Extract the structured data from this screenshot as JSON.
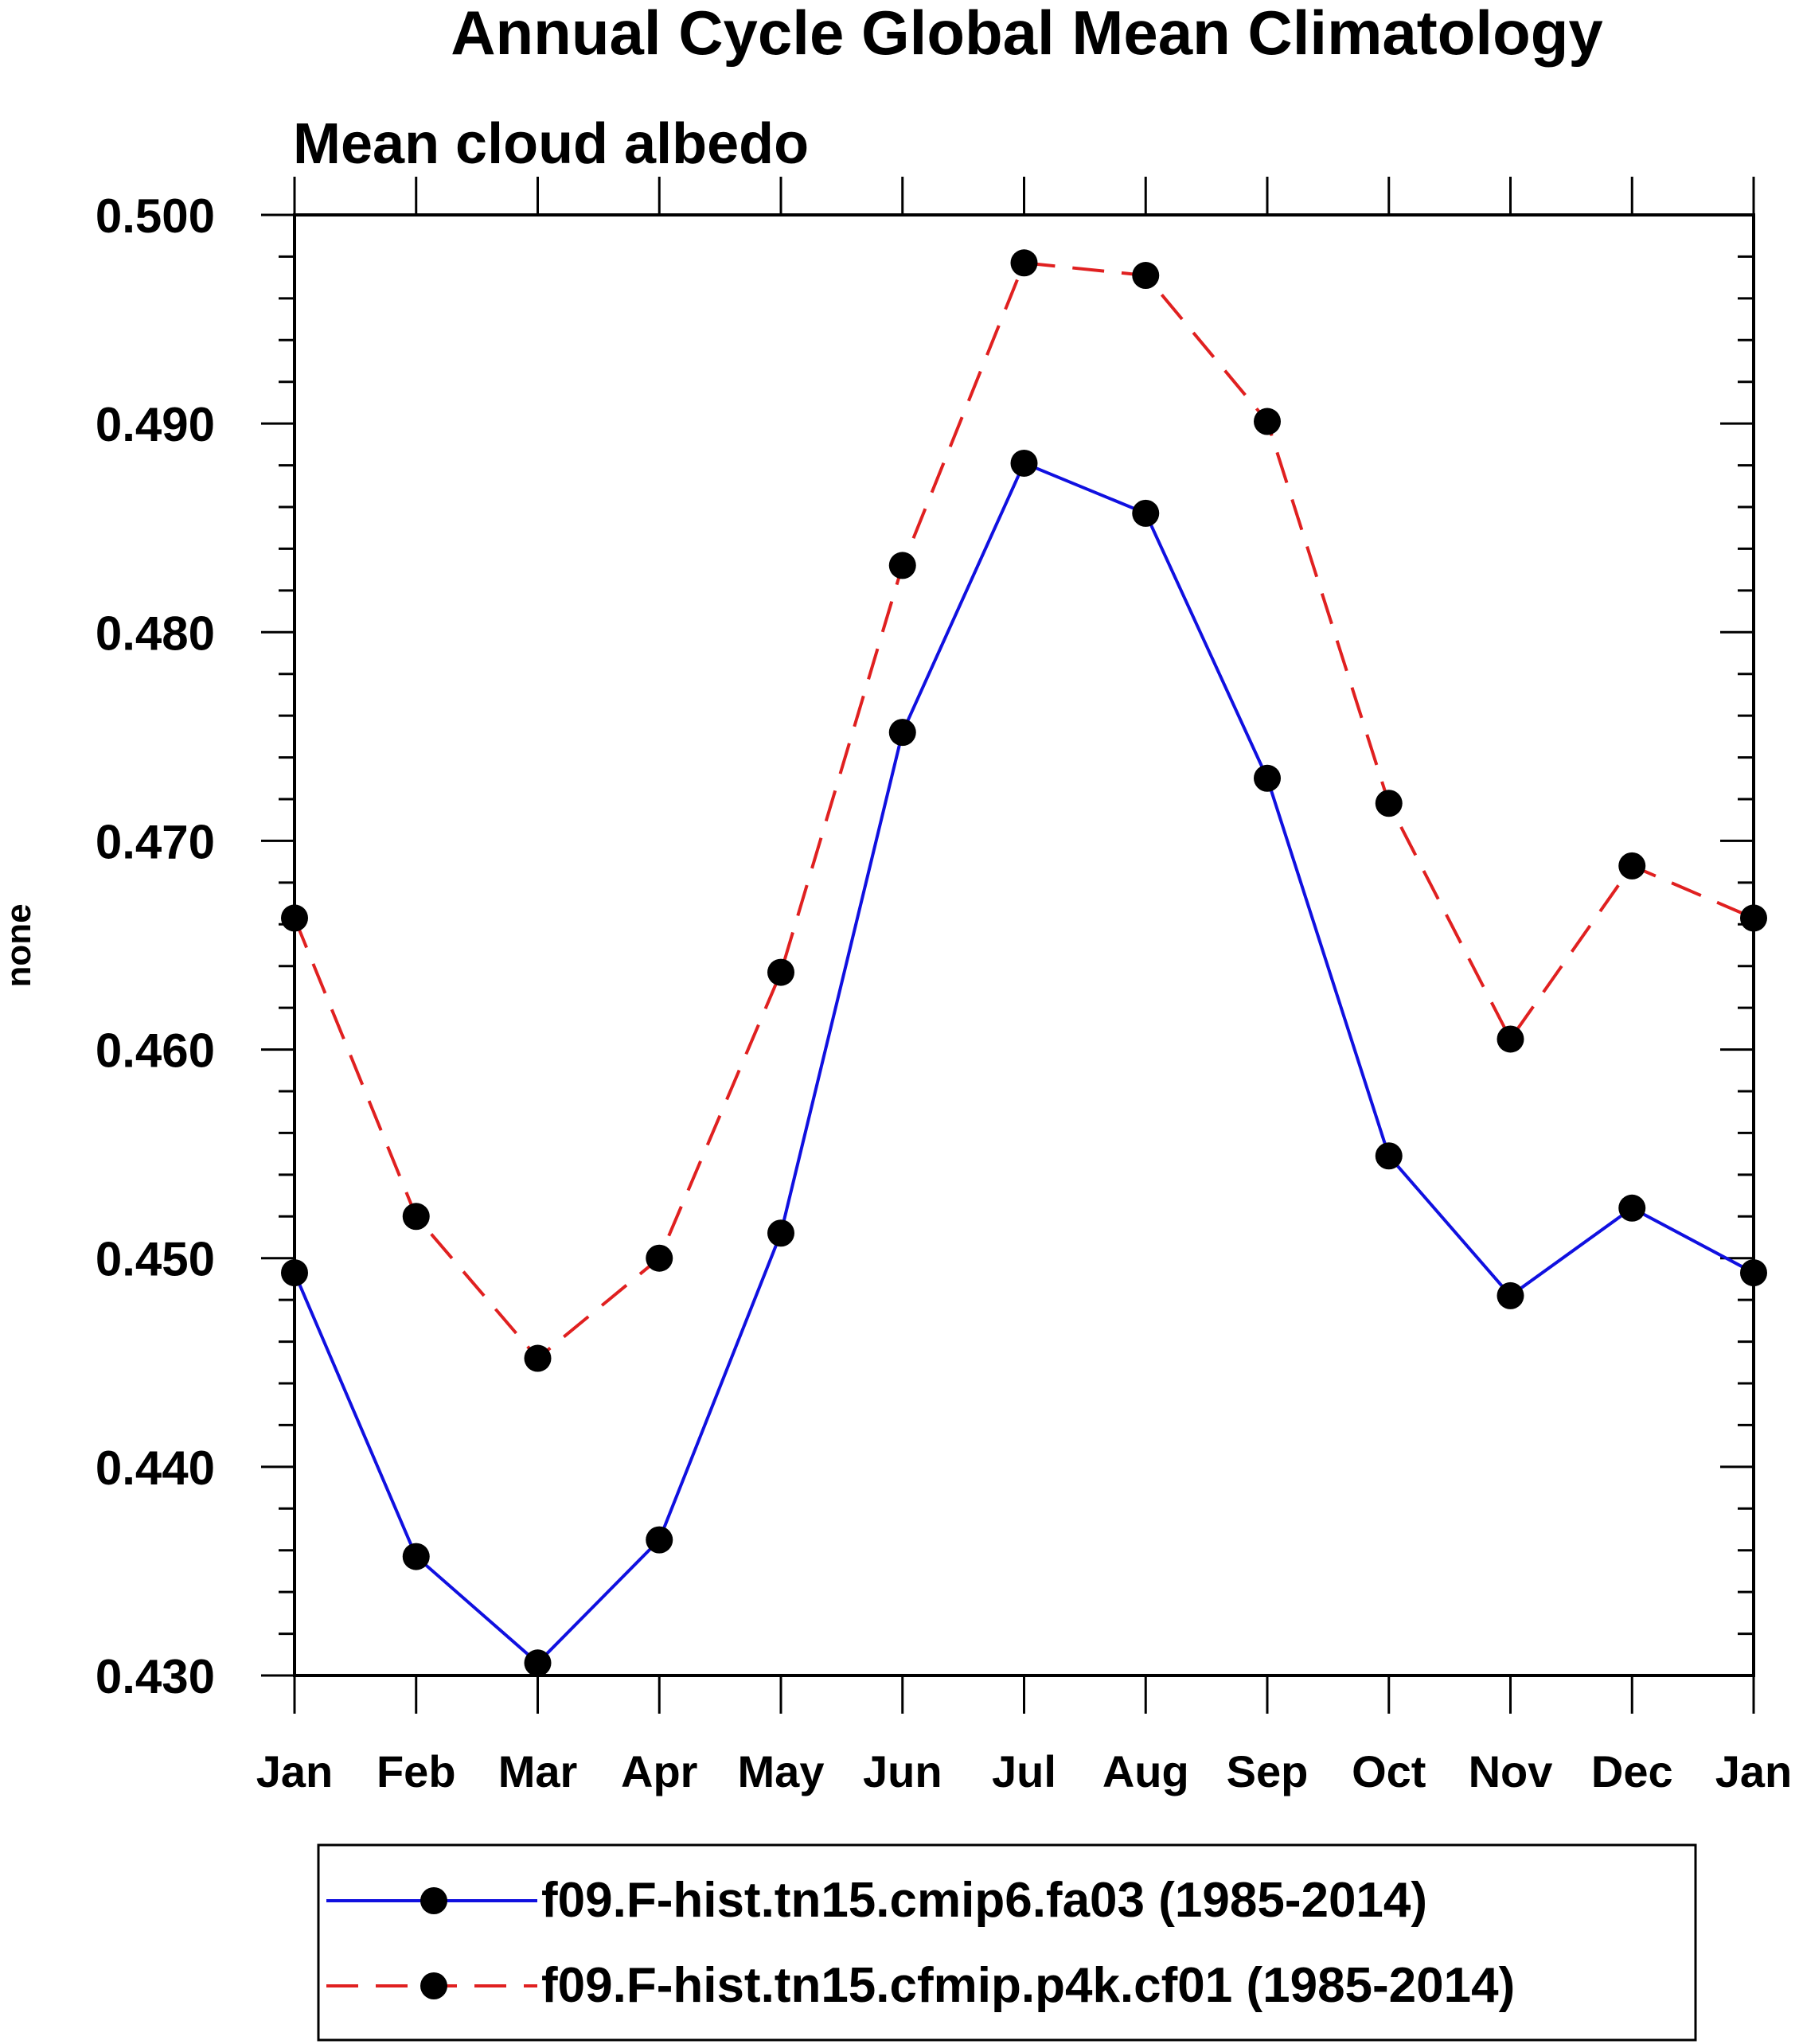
{
  "chart_data": {
    "type": "line",
    "title": "Annual Cycle Global Mean Climatology",
    "subtitle": "Mean cloud albedo",
    "ylabel": "none",
    "xlabel": "",
    "categories": [
      "Jan",
      "Feb",
      "Mar",
      "Apr",
      "May",
      "Jun",
      "Jul",
      "Aug",
      "Sep",
      "Oct",
      "Nov",
      "Dec",
      "Jan"
    ],
    "ylim": [
      0.43,
      0.5
    ],
    "yticks": [
      "0.430",
      "0.440",
      "0.450",
      "0.460",
      "0.470",
      "0.480",
      "0.490",
      "0.500"
    ],
    "series": [
      {
        "name": "f09.F-hist.tn15.cmip6.fa03 (1985-2014)",
        "color": "#1010e0",
        "dash": "solid",
        "values": [
          0.4493,
          0.4357,
          0.4306,
          0.4365,
          0.4512,
          0.4752,
          0.4881,
          0.4857,
          0.473,
          0.4549,
          0.4482,
          0.4524,
          0.4493
        ]
      },
      {
        "name": "f09.F-hist.tn15.cfmip.p4k.cf01 (1985-2014)",
        "color": "#e02020",
        "dash": "dashed",
        "values": [
          0.4663,
          0.452,
          0.4452,
          0.45,
          0.4637,
          0.4832,
          0.4977,
          0.4971,
          0.4901,
          0.4718,
          0.4605,
          0.4688,
          0.4663
        ]
      }
    ],
    "grid": false,
    "legend_position": "bottom"
  }
}
